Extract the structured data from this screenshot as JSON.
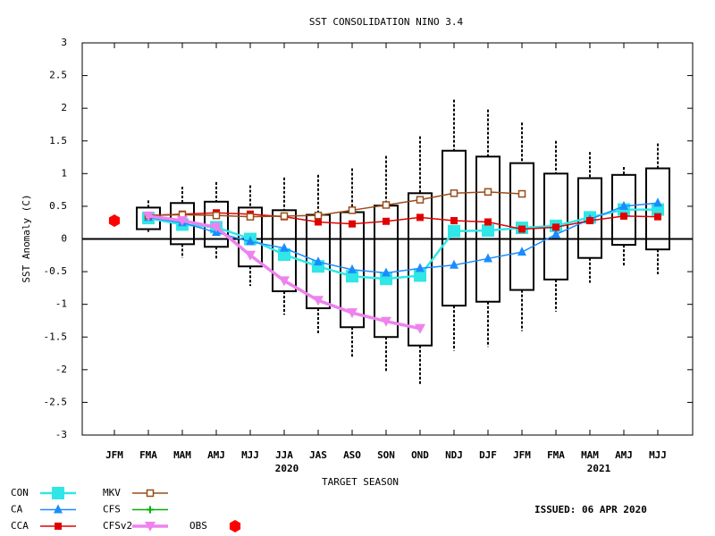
{
  "chart_data": {
    "type": "line",
    "title": "SST CONSOLIDATION NINO 3.4",
    "x_label": "TARGET SEASON",
    "y_label": "SST Anomaly (C)",
    "issued": "ISSUED: 06 APR 2020",
    "categories": [
      "JFM",
      "FMA",
      "MAM",
      "AMJ",
      "MJJ",
      "JJA",
      "JAS",
      "ASO",
      "SON",
      "OND",
      "NDJ",
      "DJF",
      "JFM",
      "FMA",
      "MAM",
      "AMJ",
      "MJJ"
    ],
    "year_labels": [
      null,
      null,
      null,
      null,
      null,
      "2020",
      null,
      null,
      null,
      null,
      null,
      null,
      null,
      null,
      "2021",
      null,
      null
    ],
    "ylim": [
      -3,
      3
    ],
    "yticks": [
      -3,
      -2.5,
      -2,
      -1.5,
      -1,
      -0.5,
      0,
      0.5,
      1,
      1.5,
      2,
      2.5,
      3
    ],
    "boxes": {
      "whisker_high": [
        null,
        0.59,
        0.8,
        0.87,
        0.82,
        0.94,
        0.98,
        1.08,
        1.27,
        1.57,
        2.13,
        1.98,
        1.78,
        1.5,
        1.33,
        1.1,
        1.46
      ],
      "box_high": [
        null,
        0.48,
        0.55,
        0.57,
        0.48,
        0.44,
        0.37,
        0.41,
        0.51,
        0.7,
        1.35,
        1.26,
        1.16,
        1.0,
        0.93,
        0.98,
        1.08
      ],
      "box_low": [
        null,
        0.15,
        -0.08,
        -0.12,
        -0.42,
        -0.8,
        -1.06,
        -1.35,
        -1.5,
        -1.63,
        -1.02,
        -0.96,
        -0.78,
        -0.62,
        -0.29,
        -0.09,
        -0.16
      ],
      "whisker_low": [
        null,
        0.1,
        -0.29,
        -0.31,
        -0.72,
        -1.16,
        -1.47,
        -1.82,
        -2.02,
        -2.23,
        -1.71,
        -1.65,
        -1.41,
        -1.11,
        -0.67,
        -0.42,
        -0.54
      ]
    },
    "series": [
      {
        "name": "CON",
        "color": "#30e6e6",
        "marker": "square",
        "values": [
          null,
          0.32,
          0.22,
          0.18,
          0.0,
          -0.24,
          -0.42,
          -0.57,
          -0.61,
          -0.56,
          0.12,
          0.13,
          0.17,
          0.2,
          0.33,
          0.45,
          0.45
        ]
      },
      {
        "name": "CA",
        "color": "#1a8cff",
        "marker": "triangle",
        "values": [
          null,
          0.33,
          0.25,
          0.1,
          -0.04,
          -0.14,
          -0.35,
          -0.47,
          -0.52,
          -0.45,
          -0.4,
          -0.3,
          -0.2,
          0.07,
          0.3,
          0.5,
          0.55
        ]
      },
      {
        "name": "CCA",
        "color": "#e00000",
        "marker": "square-small",
        "values": [
          null,
          0.36,
          0.38,
          0.4,
          0.38,
          0.34,
          0.26,
          0.23,
          0.27,
          0.33,
          0.28,
          0.26,
          0.15,
          0.18,
          0.28,
          0.35,
          0.34
        ]
      },
      {
        "name": "MKV",
        "color": "#994d1a",
        "marker": "open-square",
        "values": [
          null,
          0.36,
          0.37,
          0.36,
          0.34,
          0.35,
          0.36,
          0.44,
          0.52,
          0.6,
          0.7,
          0.72,
          0.69,
          null,
          null,
          null,
          null
        ]
      },
      {
        "name": "CFS",
        "color": "#00b000",
        "marker": "plus",
        "values": [
          null,
          null,
          null,
          null,
          null,
          null,
          null,
          null,
          null,
          null,
          null,
          null,
          null,
          null,
          null,
          null,
          null
        ]
      },
      {
        "name": "CFSv2",
        "color": "#ee82ee",
        "marker": "triangle-down",
        "values": [
          null,
          0.35,
          0.28,
          0.18,
          -0.25,
          -0.64,
          -0.94,
          -1.13,
          -1.26,
          -1.37,
          null,
          null,
          null,
          null,
          null,
          null,
          null
        ]
      },
      {
        "name": "OBS",
        "color": "#ff0000",
        "marker": "hexagon",
        "values": [
          0.28,
          null,
          null,
          null,
          null,
          null,
          null,
          null,
          null,
          null,
          null,
          null,
          null,
          null,
          null,
          null,
          null
        ]
      }
    ]
  }
}
